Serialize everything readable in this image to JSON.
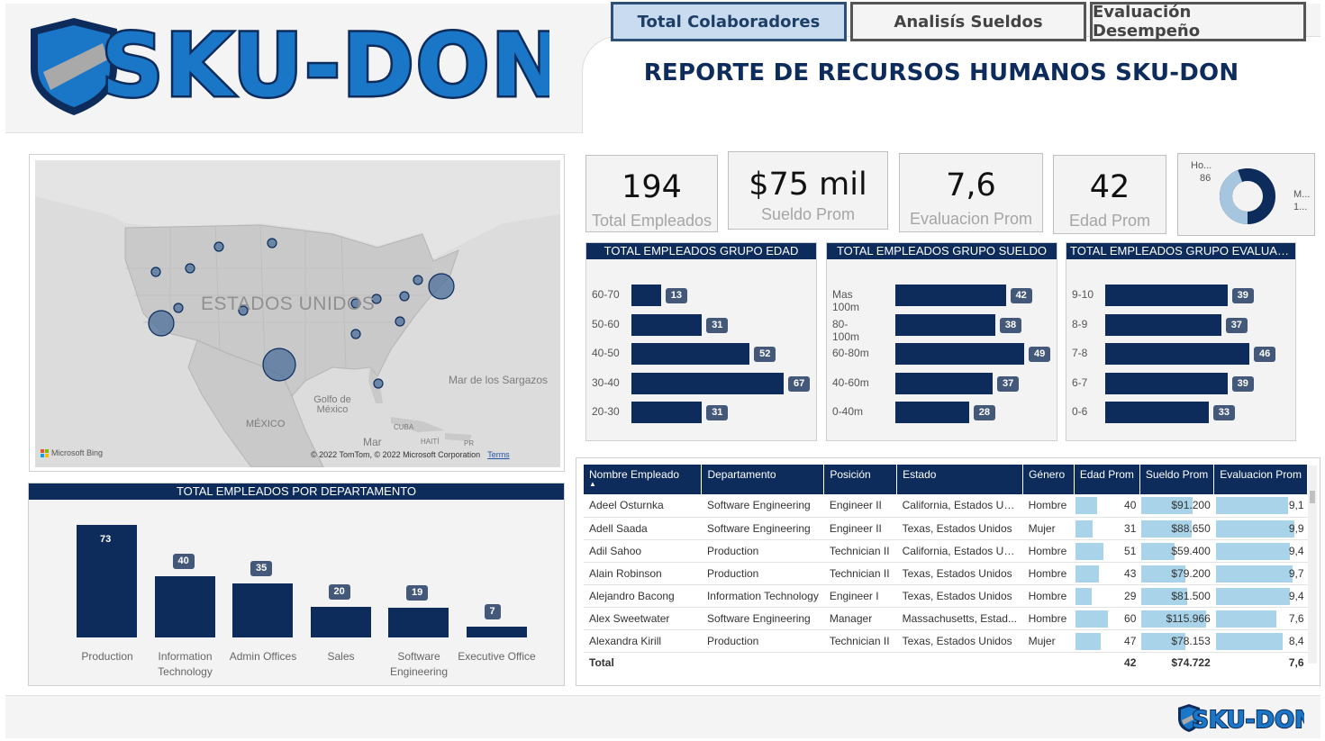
{
  "header": {
    "logo_text": "SKU-DON",
    "report_title": "REPORTE DE RECURSOS HUMANOS SKU-DON",
    "tabs": [
      {
        "label": "Total Colaboradores",
        "active": true
      },
      {
        "label": "Analisís Sueldos",
        "active": false
      },
      {
        "label": "Evaluación Desempeño",
        "active": false
      }
    ]
  },
  "map": {
    "country_label": "ESTADOS UNIDOS",
    "labels": [
      "Mar de los Sargazos",
      "Golfo de México",
      "MÉXICO",
      "CUBA",
      "HAITÍ",
      "PR",
      "Mar"
    ],
    "credit": "© 2022 TomTom, © 2022 Microsoft Corporation",
    "terms": "Terms",
    "bing": "Microsoft Bing"
  },
  "kpis": [
    {
      "value": "194",
      "label": "Total Empleados"
    },
    {
      "value": "$75 mil",
      "label": "Sueldo Prom"
    },
    {
      "value": "7,6",
      "label": "Evaluacion Prom"
    },
    {
      "value": "42",
      "label": "Edad Prom"
    }
  ],
  "gender_donut": {
    "hombre_label": "Ho...",
    "hombre_value": "86",
    "mujer_label": "M...",
    "mujer_value": "1...",
    "hombre_fraction": 0.443,
    "colors": {
      "hombre": "#a6c6e0",
      "mujer": "#0d2c5c"
    }
  },
  "grupo_edad": {
    "title": "TOTAL EMPLEADOS GRUPO EDAD",
    "categories": [
      "60-70",
      "50-60",
      "40-50",
      "30-40",
      "20-30"
    ],
    "values": [
      13,
      31,
      52,
      67,
      31
    ]
  },
  "grupo_sueldo": {
    "title": "TOTAL EMPLEADOS GRUPO SUELDO",
    "categories": [
      "Mas 100m",
      "80-100m",
      "60-80m",
      "40-60m",
      "0-40m"
    ],
    "values": [
      42,
      38,
      49,
      37,
      28
    ]
  },
  "grupo_evaluacion": {
    "title": "TOTAL EMPLEADOS GRUPO EVALUACI...",
    "categories": [
      "9-10",
      "8-9",
      "7-8",
      "6-7",
      "0-6"
    ],
    "values": [
      39,
      37,
      46,
      39,
      33
    ]
  },
  "departamento": {
    "title": "TOTAL EMPLEADOS POR DEPARTAMENTO",
    "categories": [
      "Production",
      "Information Technology",
      "Admin Offices",
      "Sales",
      "Software Engineering",
      "Executive Office"
    ],
    "values": [
      73,
      40,
      35,
      20,
      19,
      7
    ]
  },
  "chart_data": [
    {
      "type": "bar",
      "title": "TOTAL EMPLEADOS GRUPO EDAD",
      "categories": [
        "60-70",
        "50-60",
        "40-50",
        "30-40",
        "20-30"
      ],
      "values": [
        13,
        31,
        52,
        67,
        31
      ]
    },
    {
      "type": "bar",
      "title": "TOTAL EMPLEADOS GRUPO SUELDO",
      "categories": [
        "Mas 100m",
        "80-100m",
        "60-80m",
        "40-60m",
        "0-40m"
      ],
      "values": [
        42,
        38,
        49,
        37,
        28
      ]
    },
    {
      "type": "bar",
      "title": "TOTAL EMPLEADOS GRUPO EVALUACI...",
      "categories": [
        "9-10",
        "8-9",
        "7-8",
        "6-7",
        "0-6"
      ],
      "values": [
        39,
        37,
        46,
        39,
        33
      ]
    },
    {
      "type": "bar",
      "title": "TOTAL EMPLEADOS POR DEPARTAMENTO",
      "categories": [
        "Production",
        "Information Technology",
        "Admin Offices",
        "Sales",
        "Software Engineering",
        "Executive Office"
      ],
      "values": [
        73,
        40,
        35,
        20,
        19,
        7
      ]
    },
    {
      "type": "pie",
      "labels": [
        "Ho...",
        "M..."
      ],
      "values": [
        86,
        108
      ]
    }
  ],
  "table": {
    "columns": [
      "Nombre Empleado",
      "Departamento",
      "Posición",
      "Estado",
      "Género",
      "Edad Prom",
      "Sueldo Prom",
      "Evaluacion Prom"
    ],
    "rows": [
      {
        "nombre": "Adeel Osturnka",
        "dep": "Software Engineering",
        "pos": "Engineer II",
        "estado": "California, Estados Un...",
        "genero": "Hombre",
        "edad": "40",
        "edad_pct": 0.6,
        "sueldo": "$91.200",
        "sueldo_pct": 0.79,
        "eval": "9,1",
        "eval_pct": 0.91
      },
      {
        "nombre": "Adell Saada",
        "dep": "Software Engineering",
        "pos": "Engineer II",
        "estado": "Texas, Estados Unidos",
        "genero": "Mujer",
        "edad": "31",
        "edad_pct": 0.46,
        "sueldo": "$88.650",
        "sueldo_pct": 0.77,
        "eval": "9,9",
        "eval_pct": 0.99
      },
      {
        "nombre": "Adil Sahoo",
        "dep": "Production",
        "pos": "Technician II",
        "estado": "California, Estados Un...",
        "genero": "Hombre",
        "edad": "51",
        "edad_pct": 0.76,
        "sueldo": "$59.400",
        "sueldo_pct": 0.51,
        "eval": "9,4",
        "eval_pct": 0.94
      },
      {
        "nombre": "Alain Robinson",
        "dep": "Production",
        "pos": "Technician II",
        "estado": "Texas, Estados Unidos",
        "genero": "Hombre",
        "edad": "43",
        "edad_pct": 0.64,
        "sueldo": "$79.200",
        "sueldo_pct": 0.68,
        "eval": "9,7",
        "eval_pct": 0.97
      },
      {
        "nombre": "Alejandro Bacong",
        "dep": "Information Technology",
        "pos": "Engineer I",
        "estado": "Texas, Estados Unidos",
        "genero": "Hombre",
        "edad": "29",
        "edad_pct": 0.43,
        "sueldo": "$81.500",
        "sueldo_pct": 0.7,
        "eval": "9,4",
        "eval_pct": 0.94
      },
      {
        "nombre": "Alex Sweetwater",
        "dep": "Software Engineering",
        "pos": "Manager",
        "estado": "Massachusetts, Estad...",
        "genero": "Hombre",
        "edad": "60",
        "edad_pct": 0.9,
        "sueldo": "$115.966",
        "sueldo_pct": 1.0,
        "eval": "7,6",
        "eval_pct": 0.76
      },
      {
        "nombre": "Alexandra Kirill",
        "dep": "Production",
        "pos": "Technician II",
        "estado": "Texas, Estados Unidos",
        "genero": "Mujer",
        "edad": "47",
        "edad_pct": 0.7,
        "sueldo": "$78.153",
        "sueldo_pct": 0.67,
        "eval": "8,4",
        "eval_pct": 0.84
      }
    ],
    "total": {
      "label": "Total",
      "edad": "42",
      "sueldo": "$74.722",
      "eval": "7,6"
    }
  }
}
